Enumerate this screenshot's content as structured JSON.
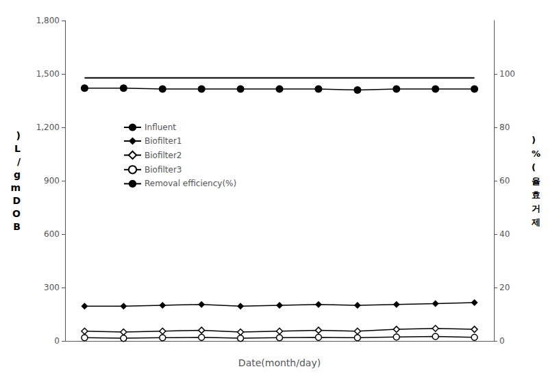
{
  "chart_data": {
    "type": "line",
    "categories": [
      null,
      null,
      null,
      null,
      null,
      null,
      null,
      null,
      null,
      null,
      null
    ],
    "xlabel": "Date(month/day)",
    "ylabel": ")L/gmDOB",
    "y2label": ")%(율효거제",
    "ylim": [
      0,
      1800
    ],
    "yticks": [
      0,
      300,
      600,
      900,
      {
        "value": 1200,
        "label": "1,200"
      },
      {
        "value": 1500,
        "label": "1,500"
      },
      {
        "value": 1800,
        "label": "1,800"
      }
    ],
    "y2lim": [
      0,
      120
    ],
    "y2ticks": [
      0,
      20,
      40,
      60,
      80,
      100
    ],
    "grid": false,
    "legend": "upper left",
    "tick_labels": "y",
    "series": [
      {
        "name": "Influent",
        "color": "#000000",
        "marker": "circle",
        "values": [
          1420,
          1420,
          1415,
          1415,
          1415,
          1415,
          1415,
          1410,
          1415,
          1415,
          1415
        ]
      },
      {
        "name": "Biofilter1",
        "color": "#000000",
        "marker": "diamond",
        "values": [
          195,
          195,
          200,
          205,
          195,
          200,
          205,
          200,
          205,
          210,
          215
        ]
      },
      {
        "name": "Biofilter2",
        "color": "#000000",
        "marker": "open_diamond",
        "values": [
          55,
          50,
          55,
          60,
          50,
          55,
          60,
          55,
          65,
          70,
          65
        ]
      },
      {
        "name": "Biofilter3",
        "color": "#000000",
        "marker": "open_circle",
        "values": [
          18,
          15,
          18,
          20,
          15,
          18,
          20,
          18,
          22,
          25,
          20
        ]
      },
      {
        "name": "Removal efficiency(%)",
        "color": "#000000",
        "marker": "none",
        "axis": "y2",
        "values": [
          98.5,
          98.5,
          98.5,
          98.5,
          98.5,
          98.5,
          98.5,
          98.5,
          98.5,
          98.5,
          98.5
        ]
      }
    ]
  }
}
